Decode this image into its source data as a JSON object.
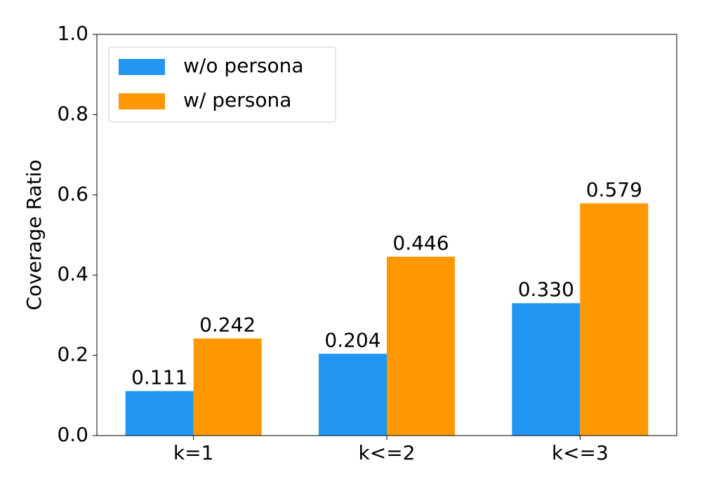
{
  "chart_data": {
    "type": "bar",
    "ylabel": "Coverage Ratio",
    "categories": [
      "k=1",
      "k<=2",
      "k<=3"
    ],
    "series": [
      {
        "name": "w/o persona",
        "color": "#2196f3",
        "values": [
          0.111,
          0.204,
          0.33
        ],
        "value_labels": [
          "0.111",
          "0.204",
          "0.330"
        ]
      },
      {
        "name": "w/ persona",
        "color": "#ff9800",
        "values": [
          0.242,
          0.446,
          0.579
        ],
        "value_labels": [
          "0.242",
          "0.446",
          "0.579"
        ]
      }
    ],
    "ylim": [
      0,
      1
    ],
    "yticks": [
      {
        "value": 0,
        "label": "0.0"
      },
      0.2,
      0.4,
      0.6,
      0.8,
      {
        "value": 1,
        "label": "1.0"
      }
    ],
    "grid": false,
    "legend": "upper left"
  }
}
